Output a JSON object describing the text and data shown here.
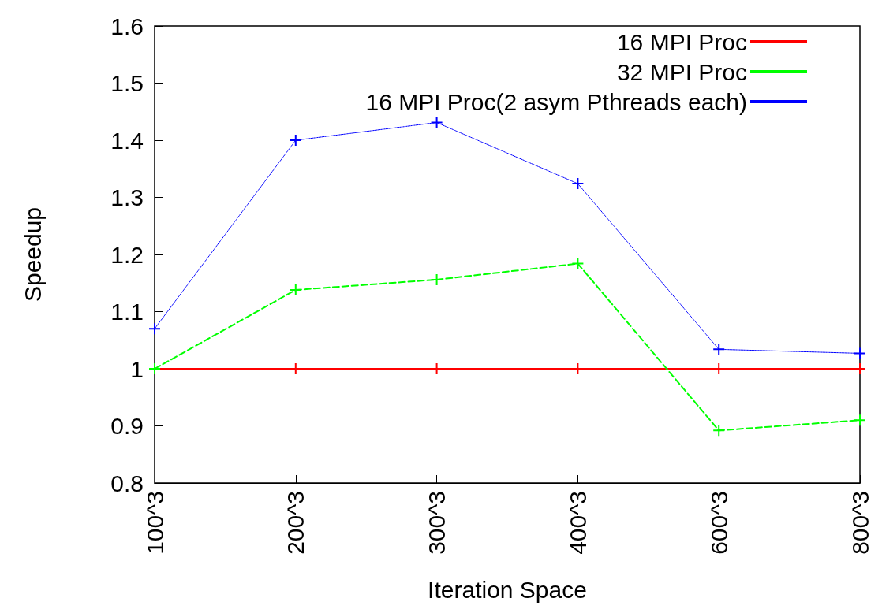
{
  "chart_data": {
    "type": "line",
    "xlabel": "Iteration Space",
    "ylabel": "Speedup",
    "categories": [
      "100^3",
      "200^3",
      "300^3",
      "400^3",
      "600^3",
      "800^3"
    ],
    "series": [
      {
        "name": "16 MPI Proc",
        "color": "#ff0000",
        "line_style": "solid",
        "marker": "cross",
        "values": [
          1,
          1,
          1,
          1,
          1,
          1
        ]
      },
      {
        "name": "32 MPI Proc",
        "color": "#00ff00",
        "line_style": "dashed",
        "marker": "cross",
        "values": [
          1.0,
          1.138,
          1.156,
          1.184,
          0.892,
          0.91
        ]
      },
      {
        "name": "16 MPI Proc(2 asym Pthreads each)",
        "color": "#0000ff",
        "line_style": "dotted",
        "marker": "cross",
        "values": [
          1.07,
          1.4,
          1.431,
          1.324,
          1.034,
          1.027
        ]
      }
    ],
    "ylim": [
      0.8,
      1.6
    ],
    "yticks": [
      0.8,
      0.9,
      1,
      1.1,
      1.2,
      1.3,
      1.4,
      1.5,
      1.6
    ],
    "grid": false,
    "legend": "top right"
  }
}
